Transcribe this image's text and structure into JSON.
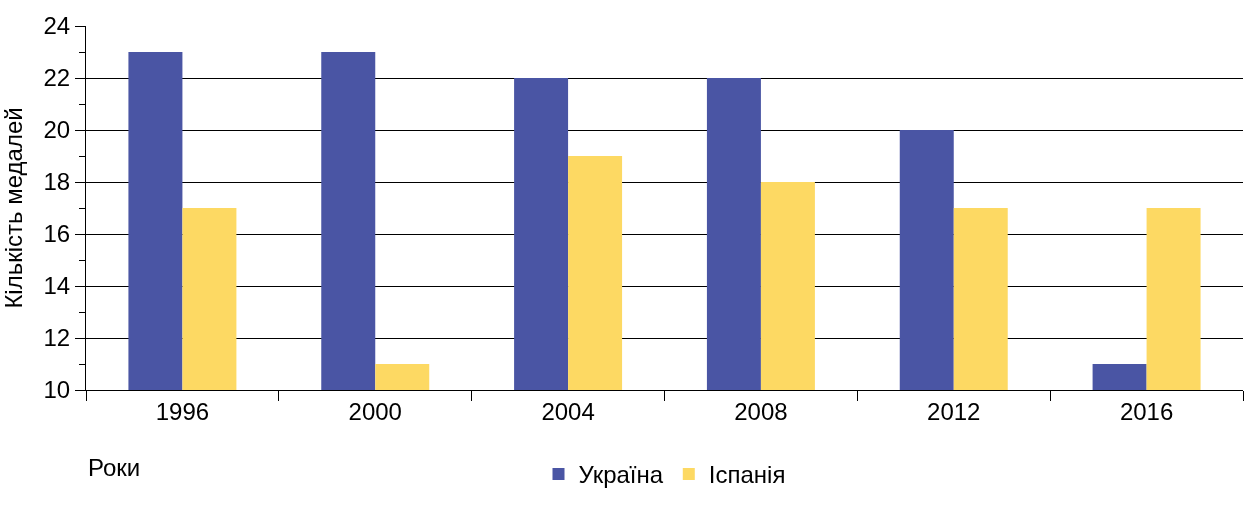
{
  "chart_data": {
    "type": "bar",
    "xlabel": "Роки",
    "ylabel": "Кількість медалей",
    "categories": [
      "1996",
      "2000",
      "2004",
      "2008",
      "2012",
      "2016"
    ],
    "series": [
      {
        "name": "Україна",
        "color": "#4a55a4",
        "values": [
          23,
          23,
          22,
          22,
          20,
          11
        ]
      },
      {
        "name": "Іспанія",
        "color": "#fdd963",
        "values": [
          17,
          11,
          19,
          18,
          17,
          17
        ]
      }
    ],
    "ylim": [
      10,
      24
    ],
    "yticks": [
      10,
      {
        "value": 11,
        "label": null
      },
      12,
      {
        "value": 13,
        "label": null
      },
      14,
      {
        "value": 15,
        "label": null
      },
      16,
      {
        "value": 17,
        "label": null
      },
      18,
      {
        "value": 19,
        "label": null
      },
      20,
      {
        "value": 21,
        "label": null
      },
      22,
      {
        "value": 23,
        "label": null
      },
      24
    ],
    "grid": "y",
    "legend": "bottom"
  }
}
